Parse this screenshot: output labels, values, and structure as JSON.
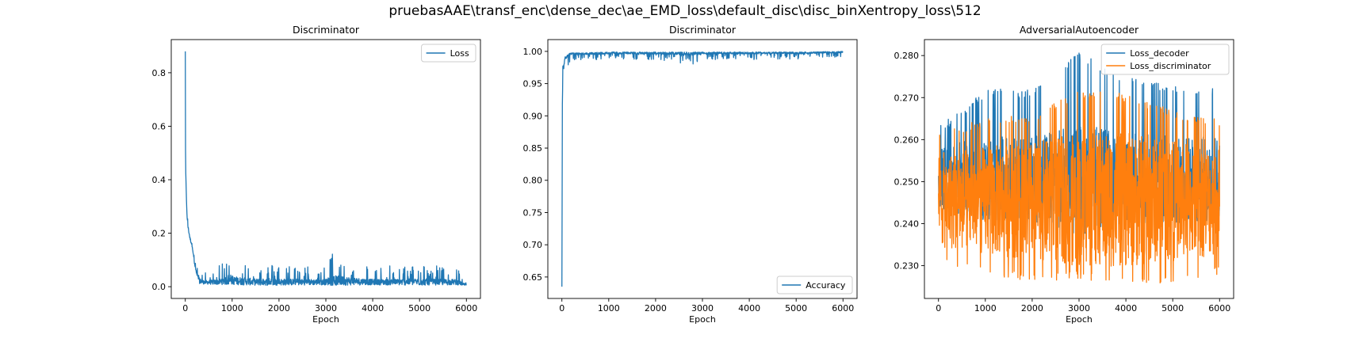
{
  "figure": {
    "suptitle": "pruebasAAE\\transf_enc\\dense_dec\\ae_EMD_loss\\default_disc\\disc_binXentropy_loss\\512"
  },
  "colors": {
    "blue": "#1f77b4",
    "orange": "#ff7f0e"
  },
  "chart_data": [
    {
      "type": "line",
      "title": "Discriminator",
      "xlabel": "Epoch",
      "ylabel": "",
      "xlim": [
        -300,
        6300
      ],
      "ylim": [
        -0.044,
        0.924
      ],
      "xticks": [
        0,
        1000,
        2000,
        3000,
        4000,
        5000,
        6000
      ],
      "yticks": [
        0.0,
        0.2,
        0.4,
        0.6,
        0.8
      ],
      "legend_placement": "top-right",
      "grid": false,
      "series": [
        {
          "name": "Loss",
          "color": "#1f77b4",
          "points_n": 6001,
          "x": [
            0,
            5,
            10,
            20,
            40,
            60,
            80,
            100,
            150,
            200,
            250,
            300,
            400,
            600,
            1000,
            1500,
            2000,
            3000,
            3100,
            4000,
            5000,
            5800,
            6000
          ],
          "y": [
            0.88,
            0.5,
            0.42,
            0.35,
            0.25,
            0.22,
            0.2,
            0.18,
            0.15,
            0.08,
            0.04,
            0.02,
            0.015,
            0.015,
            0.02,
            0.015,
            0.015,
            0.015,
            0.02,
            0.015,
            0.015,
            0.015,
            0.005
          ],
          "noise_max": [
            0,
            0.05,
            0.05,
            0.05,
            0.04,
            0.04,
            0.03,
            0.03,
            0.03,
            0.03,
            0.03,
            0.06,
            0.04,
            0.05,
            0.09,
            0.07,
            0.07,
            0.06,
            0.11,
            0.06,
            0.07,
            0.06,
            0.01
          ]
        }
      ]
    },
    {
      "type": "line",
      "title": "Discriminator",
      "xlabel": "Epoch",
      "ylabel": "",
      "xlim": [
        -300,
        6300
      ],
      "ylim": [
        0.6167,
        1.0183
      ],
      "xticks": [
        0,
        1000,
        2000,
        3000,
        4000,
        5000,
        6000
      ],
      "yticks": [
        0.65,
        0.7,
        0.75,
        0.8,
        0.85,
        0.9,
        0.95,
        1.0
      ],
      "legend_placement": "bottom-right",
      "grid": false,
      "series": [
        {
          "name": "Accuracy",
          "color": "#1f77b4",
          "points_n": 6001,
          "x": [
            0,
            5,
            10,
            20,
            30,
            40,
            60,
            80,
            100,
            150,
            200,
            300,
            500,
            1000,
            2000,
            2800,
            3000,
            4000,
            5000,
            6000
          ],
          "y": [
            0.635,
            0.8,
            0.92,
            0.98,
            0.985,
            0.985,
            0.99,
            0.993,
            0.995,
            0.997,
            0.998,
            0.998,
            0.998,
            0.999,
            0.999,
            0.999,
            0.999,
            0.999,
            0.999,
            1.0
          ],
          "noise_min": [
            0,
            0.12,
            0.06,
            0.04,
            0.04,
            0.03,
            0.03,
            0.04,
            0.02,
            0.02,
            0.015,
            0.012,
            0.012,
            0.012,
            0.012,
            0.02,
            0.012,
            0.012,
            0.012,
            0.008
          ]
        }
      ]
    },
    {
      "type": "line",
      "title": "AdversarialAutoencoder",
      "xlabel": "Epoch",
      "ylabel": "",
      "xlim": [
        -300,
        6300
      ],
      "ylim": [
        0.2222,
        0.2838
      ],
      "xticks": [
        0,
        1000,
        2000,
        3000,
        4000,
        5000,
        6000
      ],
      "yticks": [
        0.23,
        0.24,
        0.25,
        0.26,
        0.27,
        0.28
      ],
      "legend_placement": "top-right",
      "grid": false,
      "series": [
        {
          "name": "Loss_decoder",
          "color": "#1f77b4",
          "points_n": 6001,
          "x": [
            0,
            1000,
            2000,
            3000,
            4000,
            5000,
            6000
          ],
          "y": [
            0.2505,
            0.2505,
            0.2505,
            0.2505,
            0.2505,
            0.2505,
            0.2505
          ],
          "band_low": [
            0.241,
            0.243,
            0.243,
            0.243,
            0.243,
            0.243,
            0.243
          ],
          "band_high": [
            0.263,
            0.272,
            0.272,
            0.281,
            0.275,
            0.273,
            0.272
          ]
        },
        {
          "name": "Loss_discriminator",
          "color": "#ff7f0e",
          "points_n": 6001,
          "x": [
            0,
            1000,
            2000,
            3000,
            4000,
            5000,
            6000
          ],
          "y": [
            0.2455,
            0.2455,
            0.2455,
            0.2455,
            0.2455,
            0.2455,
            0.2455
          ],
          "band_low": [
            0.23,
            0.228,
            0.226,
            0.227,
            0.225,
            0.226,
            0.228
          ],
          "band_high": [
            0.262,
            0.265,
            0.266,
            0.272,
            0.271,
            0.267,
            0.265
          ]
        }
      ]
    }
  ]
}
